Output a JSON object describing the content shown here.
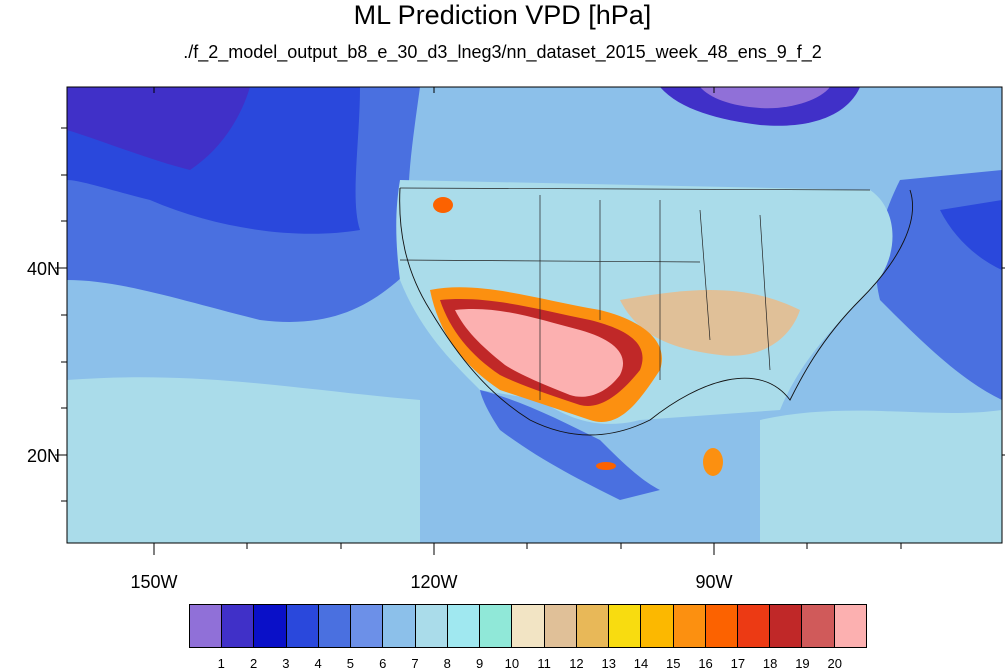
{
  "title": "ML Prediction VPD [hPa]",
  "subtitle": "./f_2_model_output_b8_e_30_d3_lneg3/nn_dataset_2015_week_48_ens_9_f_2",
  "lat_labels": [
    "40N",
    "20N"
  ],
  "lon_labels": [
    "150W",
    "120W",
    "90W"
  ],
  "colorbar": {
    "colors": [
      "#9070d8",
      "#4030c8",
      "#0a10c8",
      "#2a48dc",
      "#4a70e0",
      "#6c90e8",
      "#8cc0ea",
      "#aadcea",
      "#a0e8f0",
      "#90e8d8",
      "#f2e4c4",
      "#e0c098",
      "#e8b858",
      "#f8dc10",
      "#fcb800",
      "#fc9010",
      "#fc6200",
      "#ec3a14",
      "#c02828",
      "#d05a5a",
      "#fcb0b0"
    ],
    "labels": [
      "1",
      "2",
      "3",
      "4",
      "5",
      "6",
      "7",
      "8",
      "9",
      "10",
      "11",
      "12",
      "13",
      "14",
      "15",
      "16",
      "17",
      "18",
      "19",
      "20"
    ]
  },
  "map_colors": {
    "ocean_base": "#8cc0ea",
    "deep_blue": "#4a70e0",
    "dark_blue": "#2a48dc",
    "navy": "#4030c8",
    "purple": "#9070d8",
    "cyan": "#aadcea",
    "beige": "#e0c098",
    "pink": "#fcb0b0",
    "red": "#c02828",
    "orange": "#fc9010",
    "dark_orange": "#fc6200",
    "yellow": "#f8dc10"
  }
}
